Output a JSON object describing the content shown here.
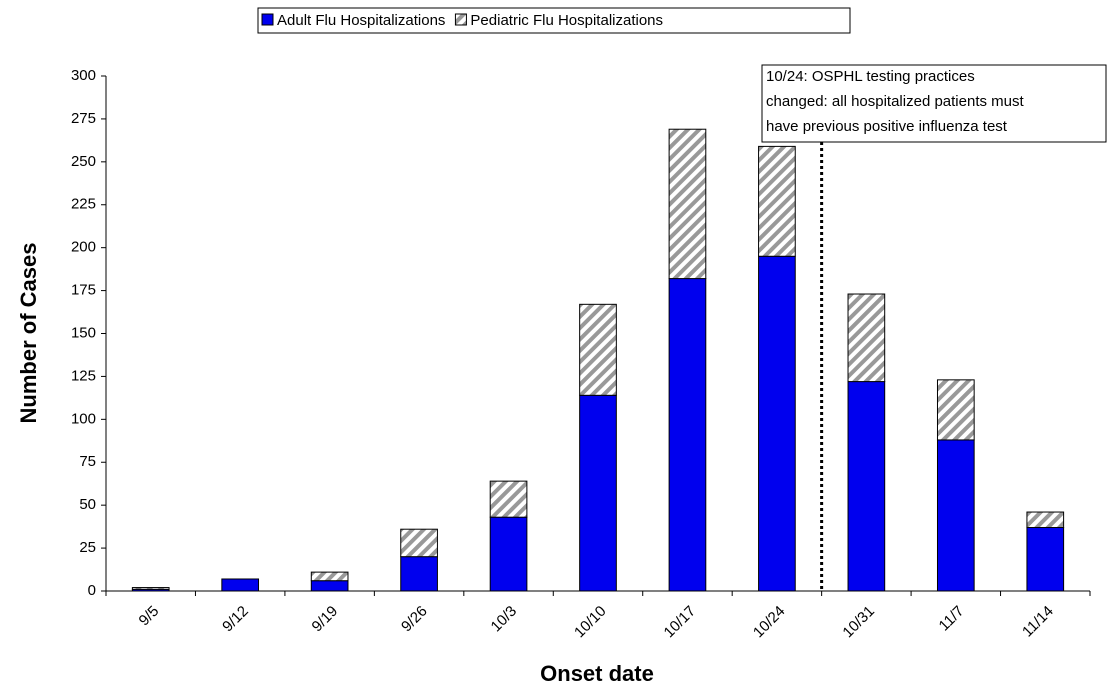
{
  "chart_data": {
    "type": "stacked_bar",
    "xlabel": "Onset date",
    "ylabel": "Number of Cases",
    "categories": [
      "9/5",
      "9/12",
      "9/19",
      "9/26",
      "10/3",
      "10/10",
      "10/17",
      "10/24",
      "10/31",
      "11/7",
      "11/14"
    ],
    "series": [
      {
        "name": "Adult Flu Hospitalizations",
        "color": "#0000ee",
        "values": [
          1,
          7,
          6,
          20,
          43,
          114,
          182,
          195,
          122,
          88,
          37
        ]
      },
      {
        "name": "Pediatric Flu Hospitalizations",
        "color": "#999999",
        "values": [
          1,
          0,
          5,
          16,
          21,
          53,
          87,
          64,
          51,
          35,
          9
        ]
      }
    ],
    "ylim": [
      0,
      300
    ],
    "yticks": [
      0,
      25,
      50,
      75,
      100,
      125,
      150,
      175,
      200,
      225,
      250,
      275,
      300
    ],
    "annotation": [
      "10/24: OSPHL testing practices",
      "changed: all hospitalized patients must",
      "have previous positive influenza test"
    ]
  }
}
